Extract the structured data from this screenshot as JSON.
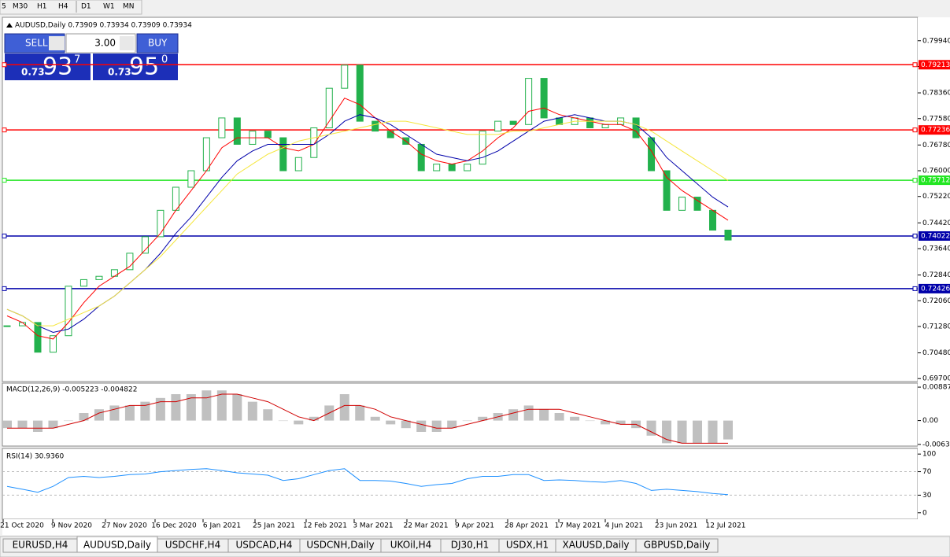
{
  "toolbar": {
    "timeframes": [
      "5",
      "M30",
      "H1",
      "H4",
      "D1",
      "W1",
      "MN"
    ]
  },
  "trade_panel": {
    "sell": "SELL",
    "buy": "BUY",
    "lots": "3.00",
    "sell_price": {
      "prefix": "0.73",
      "big": "93",
      "sup": "7"
    },
    "buy_price": {
      "prefix": "0.73",
      "big": "95",
      "sup": "0"
    }
  },
  "chart_data": [
    {
      "type": "candlestick",
      "title": "AUDUSD,Daily 0.73909 0.73934 0.73909 0.73934",
      "color": "#22b14c",
      "close": [
        0.713,
        0.714,
        0.705,
        0.71,
        0.725,
        0.727,
        0.728,
        0.73,
        0.735,
        0.74,
        0.748,
        0.755,
        0.76,
        0.77,
        0.776,
        0.768,
        0.772,
        0.77,
        0.76,
        0.764,
        0.773,
        0.785,
        0.792,
        0.775,
        0.772,
        0.77,
        0.768,
        0.76,
        0.762,
        0.76,
        0.762,
        0.772,
        0.775,
        0.774,
        0.788,
        0.776,
        0.774,
        0.776,
        0.773,
        0.774,
        0.776,
        0.77,
        0.76,
        0.748,
        0.752,
        0.748,
        0.742,
        0.739
      ],
      "series": [
        {
          "color": "#ff0000",
          "values": [
            0.716,
            0.714,
            0.71,
            0.709,
            0.714,
            0.72,
            0.725,
            0.728,
            0.731,
            0.736,
            0.741,
            0.748,
            0.754,
            0.76,
            0.767,
            0.77,
            0.77,
            0.77,
            0.767,
            0.766,
            0.768,
            0.775,
            0.782,
            0.78,
            0.776,
            0.772,
            0.769,
            0.765,
            0.763,
            0.762,
            0.763,
            0.766,
            0.77,
            0.773,
            0.778,
            0.779,
            0.777,
            0.776,
            0.775,
            0.774,
            0.774,
            0.772,
            0.766,
            0.758,
            0.754,
            0.751,
            0.748,
            0.745
          ]
        },
        {
          "color": "#0000aa",
          "values": [
            0.718,
            0.716,
            0.713,
            0.711,
            0.712,
            0.715,
            0.719,
            0.722,
            0.726,
            0.73,
            0.735,
            0.741,
            0.746,
            0.752,
            0.758,
            0.763,
            0.766,
            0.768,
            0.768,
            0.768,
            0.768,
            0.771,
            0.775,
            0.777,
            0.776,
            0.774,
            0.771,
            0.768,
            0.765,
            0.764,
            0.763,
            0.764,
            0.766,
            0.769,
            0.772,
            0.775,
            0.776,
            0.777,
            0.776,
            0.775,
            0.775,
            0.774,
            0.77,
            0.764,
            0.76,
            0.756,
            0.752,
            0.749
          ]
        },
        {
          "color": "#f5e63c",
          "values": [
            0.718,
            0.716,
            0.713,
            0.713,
            0.715,
            0.717,
            0.719,
            0.722,
            0.726,
            0.73,
            0.734,
            0.739,
            0.744,
            0.749,
            0.754,
            0.759,
            0.762,
            0.765,
            0.767,
            0.769,
            0.77,
            0.771,
            0.772,
            0.773,
            0.774,
            0.775,
            0.775,
            0.774,
            0.773,
            0.772,
            0.771,
            0.771,
            0.771,
            0.772,
            0.772,
            0.773,
            0.774,
            0.775,
            0.775,
            0.775,
            0.775,
            0.774,
            0.772,
            0.769,
            0.766,
            0.763,
            0.76,
            0.757
          ]
        }
      ],
      "ylim": [
        0.6961,
        0.8065
      ],
      "yticks": [
        {
          "value": 0.7994,
          "label": "0.79940"
        },
        {
          "value": 0.7916,
          "label": "0.79160"
        },
        {
          "value": 0.7836,
          "label": "0.78360"
        },
        {
          "value": 0.7758,
          "label": "0.77580"
        },
        {
          "value": 0.7678,
          "label": "0.76780"
        },
        {
          "value": 0.76,
          "label": "0.76000"
        },
        {
          "value": 0.7522,
          "label": "0.75220"
        },
        {
          "value": 0.7442,
          "label": "0.74420"
        },
        {
          "value": 0.7364,
          "label": "0.73640"
        },
        {
          "value": 0.7284,
          "label": "0.72840"
        },
        {
          "value": 0.7206,
          "label": "0.72060"
        },
        {
          "value": 0.7128,
          "label": "0.71280"
        },
        {
          "value": 0.7048,
          "label": "0.70480"
        },
        {
          "value": 0.697,
          "label": "0.69700"
        }
      ],
      "levels": [
        {
          "value": 0.79213,
          "color": "#ff0000"
        },
        {
          "value": 0.77236,
          "color": "#ff0000"
        },
        {
          "value": 0.75712,
          "color": "#22e622"
        },
        {
          "value": 0.74022,
          "color": "#0000aa"
        },
        {
          "value": 0.72426,
          "color": "#0000aa"
        }
      ]
    },
    {
      "type": "bar",
      "title": "MACD(12,26,9) -0.005223 -0.004822",
      "color": "#c0c0c0",
      "values": [
        -0.002,
        -0.002,
        -0.003,
        -0.002,
        0.0,
        0.002,
        0.003,
        0.004,
        0.004,
        0.005,
        0.006,
        0.007,
        0.007,
        0.008,
        0.008,
        0.007,
        0.005,
        0.003,
        0.0,
        -0.001,
        0.001,
        0.004,
        0.007,
        0.004,
        0.001,
        -0.001,
        -0.002,
        -0.003,
        -0.003,
        -0.002,
        0.0,
        0.001,
        0.002,
        0.003,
        0.004,
        0.003,
        0.002,
        0.001,
        0.0,
        -0.001,
        -0.001,
        -0.002,
        -0.004,
        -0.006,
        -0.006,
        -0.006,
        -0.006,
        -0.005
      ],
      "series": [
        {
          "color": "#d00000",
          "values": [
            -0.002,
            -0.002,
            -0.002,
            -0.002,
            -0.001,
            0.0,
            0.002,
            0.003,
            0.004,
            0.004,
            0.005,
            0.005,
            0.006,
            0.006,
            0.007,
            0.007,
            0.006,
            0.005,
            0.003,
            0.001,
            0.0,
            0.002,
            0.004,
            0.004,
            0.003,
            0.001,
            0.0,
            -0.001,
            -0.002,
            -0.002,
            -0.001,
            0.0,
            0.001,
            0.002,
            0.003,
            0.003,
            0.003,
            0.002,
            0.001,
            0.0,
            -0.001,
            -0.001,
            -0.003,
            -0.005,
            -0.006,
            -0.006,
            -0.006,
            -0.006
          ]
        }
      ],
      "ylim": [
        -0.00676,
        0.00993
      ],
      "yticks": [
        {
          "value": 0.008871,
          "label": "0.008871"
        },
        {
          "value": 0,
          "label": "0.00"
        },
        {
          "value": -0.00632,
          "label": "-0.00632"
        }
      ]
    },
    {
      "type": "line",
      "title": "RSI(14) 30.9360",
      "series": [
        {
          "color": "#1e90ff",
          "values": [
            45,
            40,
            35,
            45,
            60,
            62,
            60,
            62,
            65,
            66,
            70,
            72,
            74,
            75,
            72,
            68,
            66,
            64,
            55,
            58,
            65,
            72,
            75,
            55,
            55,
            54,
            50,
            45,
            48,
            50,
            58,
            62,
            62,
            65,
            65,
            55,
            56,
            55,
            53,
            52,
            55,
            50,
            38,
            40,
            38,
            36,
            33,
            31
          ]
        }
      ],
      "ylim": [
        -11,
        109.6
      ],
      "yticks": [
        100,
        70,
        30,
        0
      ],
      "levels": [
        70,
        30
      ]
    }
  ],
  "date_axis": [
    "21 Oct 2020",
    "9 Nov 2020",
    "27 Nov 2020",
    "16 Dec 2020",
    "6 Jan 2021",
    "25 Jan 2021",
    "12 Feb 2021",
    "3 Mar 2021",
    "22 Mar 2021",
    "9 Apr 2021",
    "28 Apr 2021",
    "17 May 2021",
    "4 Jun 2021",
    "23 Jun 2021",
    "12 Jul 2021"
  ],
  "tabs": [
    "EURUSD,H4",
    "AUDUSD,Daily",
    "USDCHF,H4",
    "USDCAD,H4",
    "USDCNH,Daily",
    "UKOil,H4",
    "DJ30,H1",
    "USDX,H1",
    "XAUUSD,Daily",
    "GBPUSD,Daily"
  ]
}
